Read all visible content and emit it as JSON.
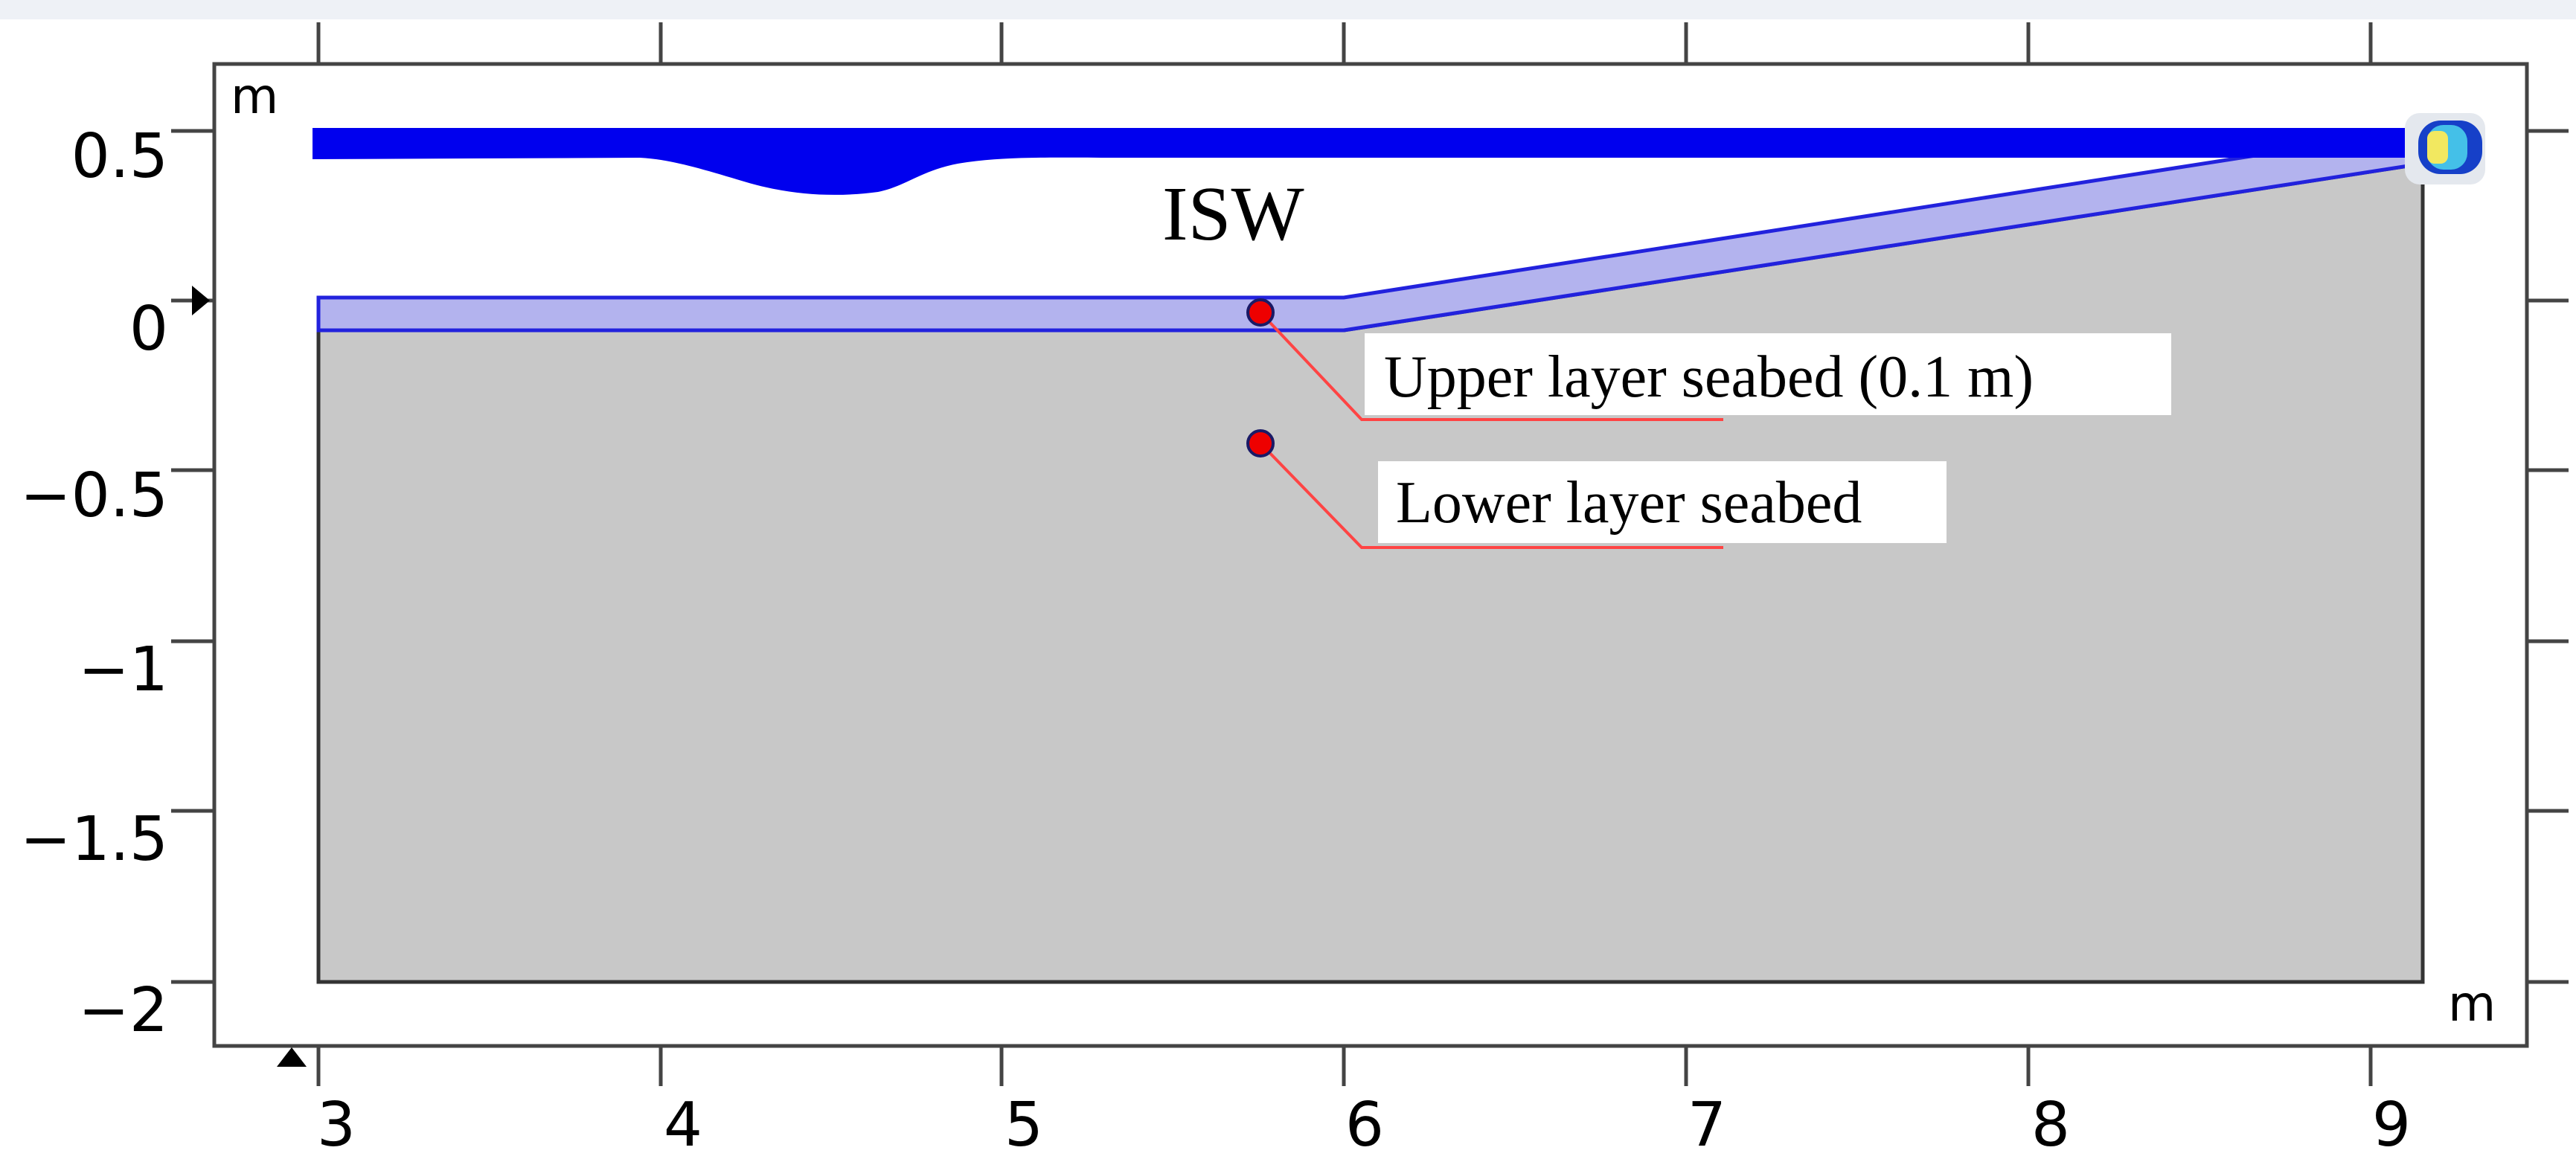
{
  "figure": {
    "x_unit": "m",
    "y_unit": "m",
    "x_ticks": [
      "3",
      "4",
      "5",
      "6",
      "7",
      "8",
      "9"
    ],
    "y_ticks": [
      "0.5",
      "0",
      "−0.5",
      "−1",
      "−1.5",
      "−2"
    ],
    "wave_label": "ISW",
    "probes": [
      {
        "label": "Upper layer seabed (0.1 m)"
      },
      {
        "label": "Lower layer seabed"
      }
    ],
    "colors": {
      "water_layer": "#0000ee",
      "seabed_layer": "#b3b3ee",
      "seabed_outline": "#2222dd",
      "seabed_body": "#c8c8c8",
      "probe_marker": "#ee0000",
      "leader_line": "#ff4444",
      "frame": "#444444"
    }
  }
}
